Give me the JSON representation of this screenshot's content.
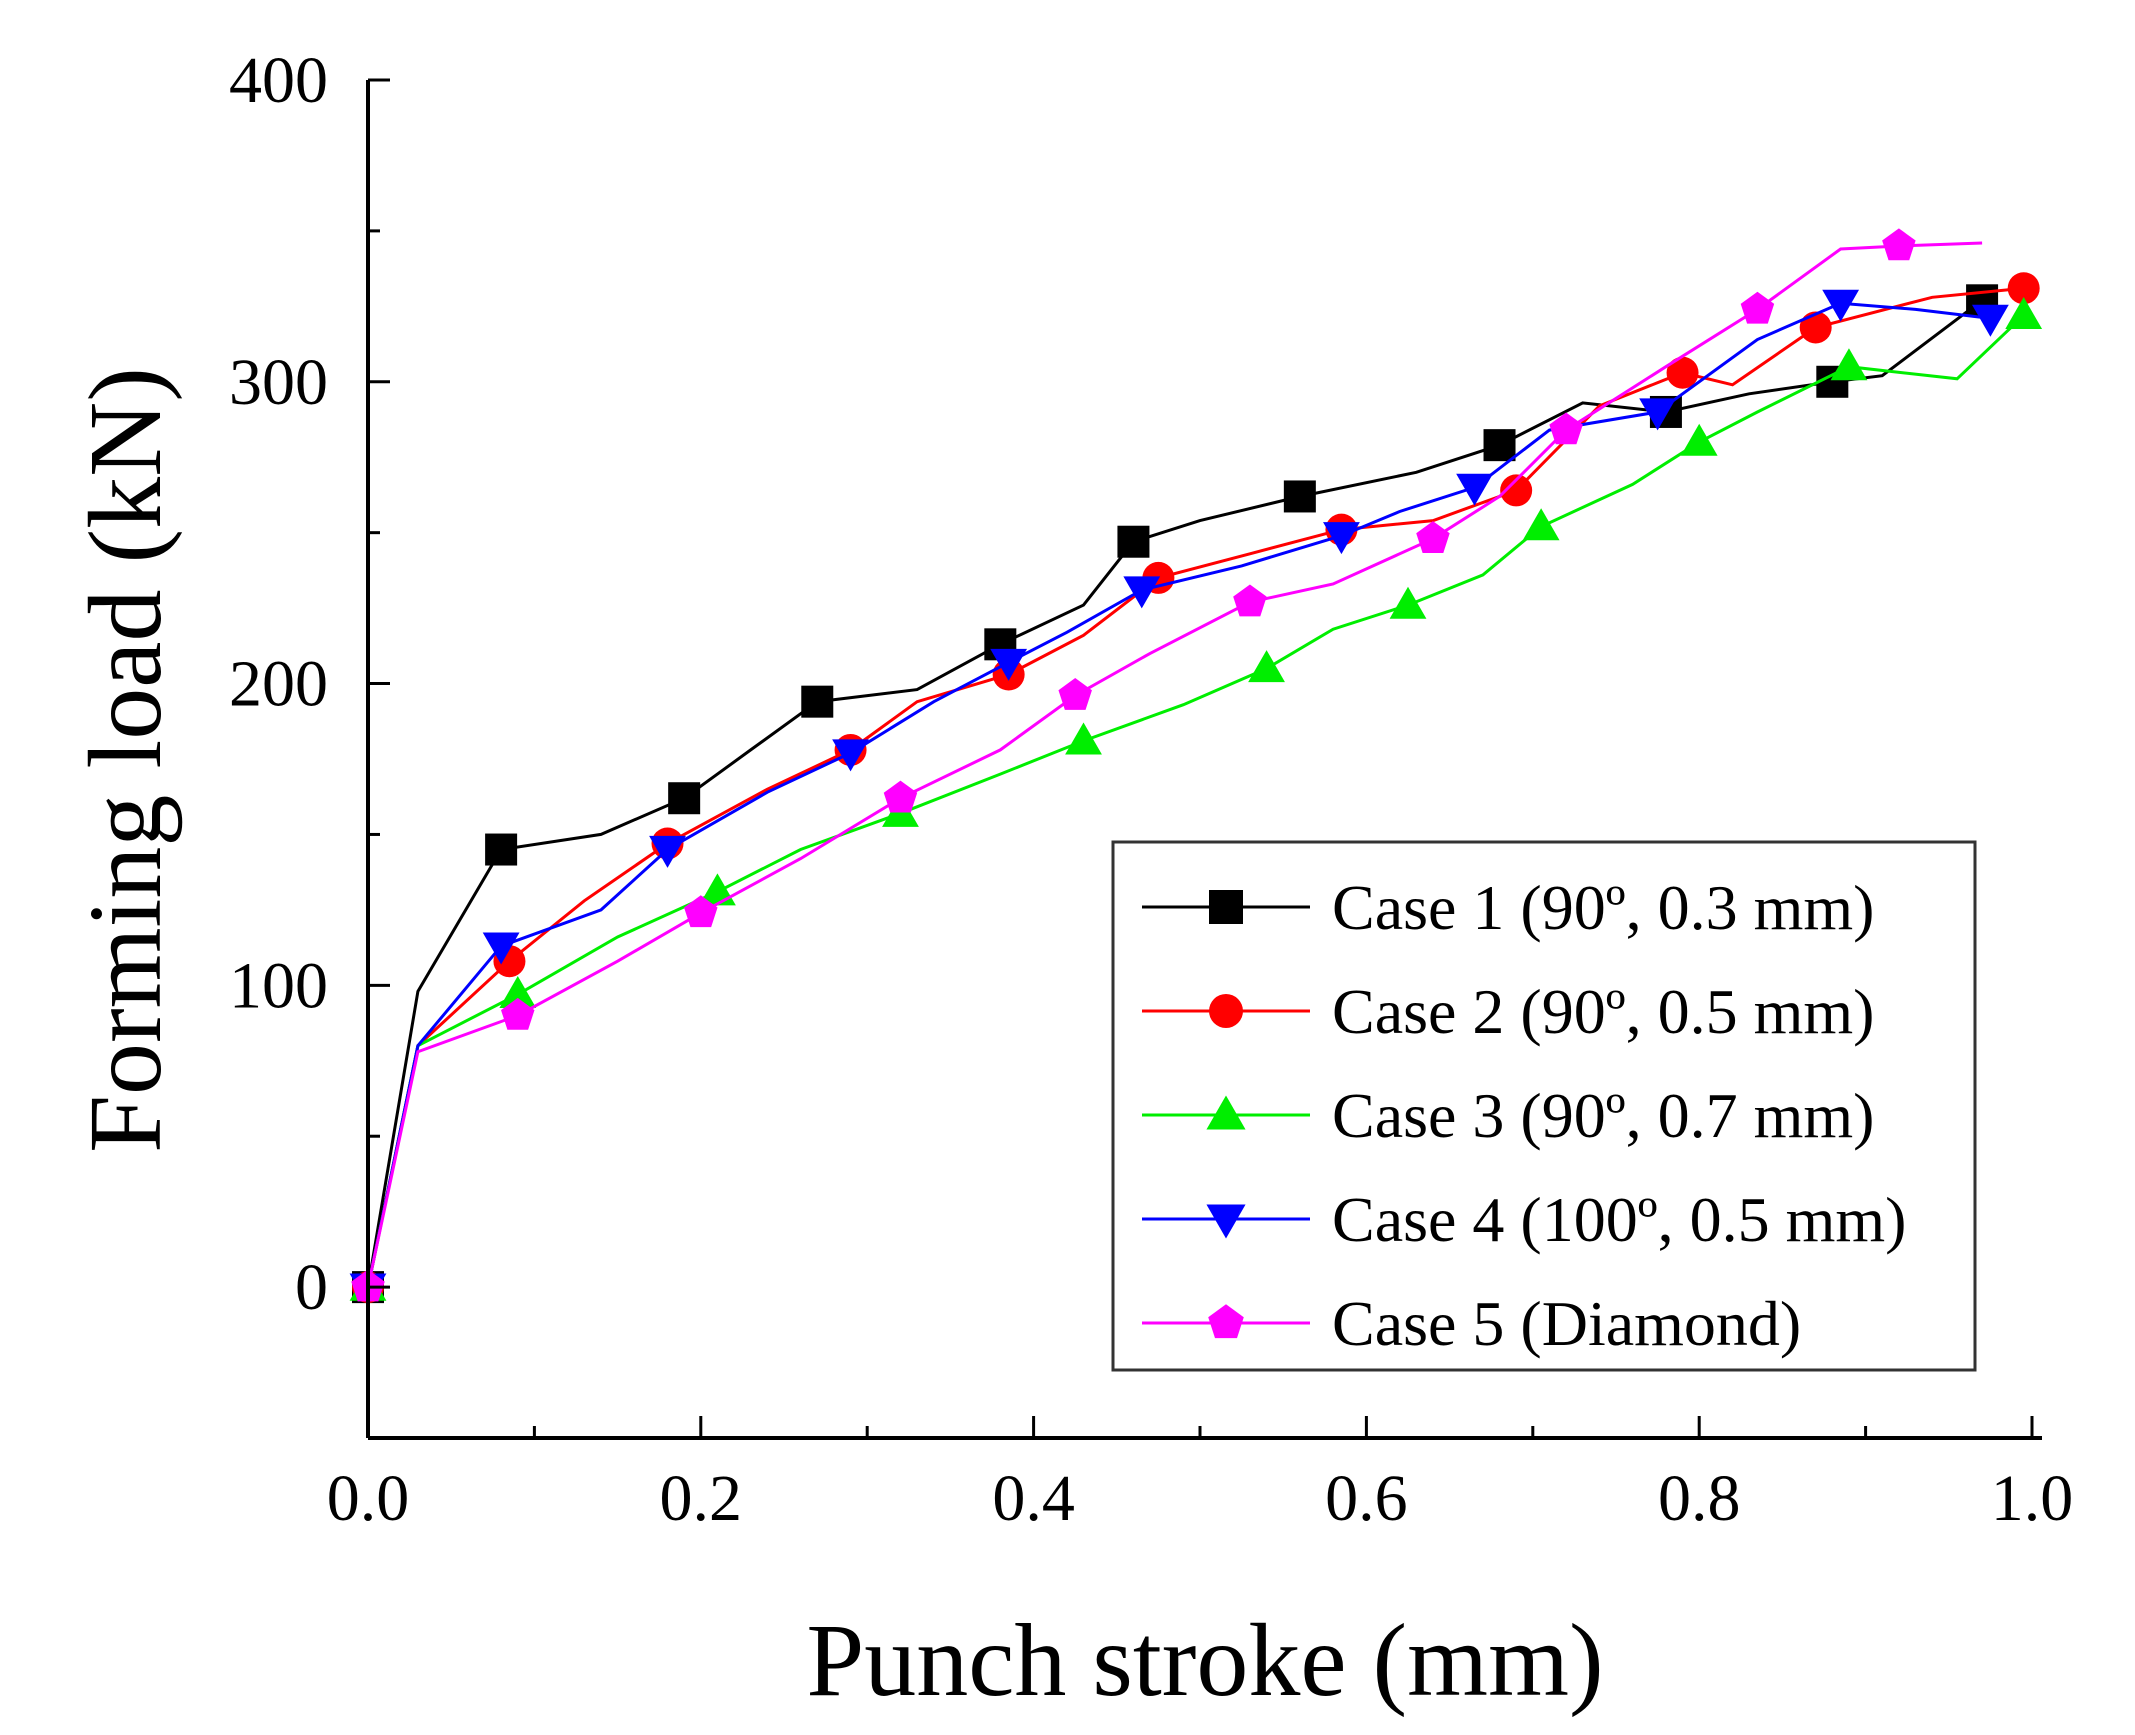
{
  "chart_data": {
    "type": "line",
    "title": "",
    "xlabel": "Punch stroke (mm)",
    "ylabel": "Forming load (kN)",
    "xlim": [
      0.0,
      1.0
    ],
    "ylim": [
      -50,
      400
    ],
    "xticks": [
      "0.0",
      "0.2",
      "0.4",
      "0.6",
      "0.8",
      "1.0"
    ],
    "yticks": [
      "0",
      "100",
      "200",
      "300",
      "400"
    ],
    "legend_position": "bottom-right",
    "series": [
      {
        "name": "Case 1 (90º, 0.3 mm)",
        "color": "#000000",
        "marker": "square",
        "x": [
          0.0,
          0.03,
          0.08,
          0.14,
          0.19,
          0.23,
          0.27,
          0.33,
          0.38,
          0.43,
          0.46,
          0.5,
          0.56,
          0.63,
          0.68,
          0.73,
          0.78,
          0.83,
          0.88,
          0.91,
          0.97
        ],
        "y": [
          0,
          98,
          145,
          150,
          162,
          178,
          194,
          198,
          213,
          226,
          247,
          254,
          262,
          270,
          279,
          293,
          290,
          296,
          300,
          302,
          327
        ]
      },
      {
        "name": "Case 2 (90º, 0.5 mm)",
        "color": "#ff0000",
        "marker": "circle",
        "x": [
          0.0,
          0.03,
          0.085,
          0.13,
          0.18,
          0.24,
          0.29,
          0.33,
          0.385,
          0.43,
          0.475,
          0.53,
          0.585,
          0.64,
          0.69,
          0.74,
          0.79,
          0.82,
          0.87,
          0.94,
          0.995
        ],
        "y": [
          0,
          80,
          108,
          128,
          147,
          165,
          178,
          194,
          203,
          216,
          235,
          243,
          251,
          254,
          264,
          292,
          303,
          299,
          318,
          328,
          331
        ]
      },
      {
        "name": "Case 3 (90º, 0.7 mm)",
        "color": "#00ee00",
        "marker": "triangle-up",
        "x": [
          0.0,
          0.03,
          0.09,
          0.15,
          0.21,
          0.26,
          0.32,
          0.38,
          0.43,
          0.49,
          0.54,
          0.58,
          0.625,
          0.67,
          0.705,
          0.76,
          0.8,
          0.835,
          0.89,
          0.955,
          0.995
        ],
        "y": [
          0,
          80,
          97,
          116,
          131,
          145,
          157,
          170,
          181,
          193,
          205,
          218,
          226,
          236,
          252,
          266,
          280,
          290,
          305,
          301,
          322
        ]
      },
      {
        "name": "Case 4 (100º, 0.5 mm)",
        "color": "#0000ff",
        "marker": "triangle-down",
        "x": [
          0.0,
          0.03,
          0.08,
          0.14,
          0.18,
          0.24,
          0.29,
          0.34,
          0.385,
          0.42,
          0.465,
          0.525,
          0.585,
          0.62,
          0.665,
          0.71,
          0.775,
          0.835,
          0.885,
          0.93,
          0.975
        ],
        "y": [
          0,
          80,
          113,
          125,
          145,
          164,
          177,
          194,
          207,
          217,
          231,
          239,
          249,
          257,
          265,
          284,
          290,
          314,
          326,
          324,
          321
        ]
      },
      {
        "name": "Case 5 (Diamond)",
        "color": "#ff00ff",
        "marker": "pentagon",
        "x": [
          0.0,
          0.03,
          0.09,
          0.15,
          0.2,
          0.26,
          0.32,
          0.38,
          0.425,
          0.47,
          0.53,
          0.58,
          0.64,
          0.68,
          0.72,
          0.78,
          0.835,
          0.885,
          0.92,
          0.97
        ],
        "y": [
          0,
          78,
          90,
          108,
          124,
          142,
          162,
          178,
          196,
          210,
          227,
          233,
          248,
          262,
          284,
          305,
          324,
          344,
          345,
          346
        ]
      }
    ]
  }
}
